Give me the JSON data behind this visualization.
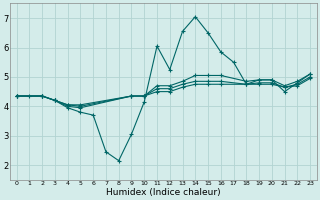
{
  "xlabel": "Humidex (Indice chaleur)",
  "bg_color": "#d4ecea",
  "grid_color": "#b2d4d2",
  "line_color": "#006666",
  "xlim": [
    -0.5,
    23.5
  ],
  "ylim": [
    1.5,
    7.5
  ],
  "xticks": [
    0,
    1,
    2,
    3,
    4,
    5,
    6,
    7,
    8,
    9,
    10,
    11,
    12,
    13,
    14,
    15,
    16,
    17,
    18,
    19,
    20,
    21,
    22,
    23
  ],
  "yticks": [
    2,
    3,
    4,
    5,
    6,
    7
  ],
  "series": [
    {
      "x": [
        0,
        1,
        2,
        3,
        4,
        5,
        6,
        7,
        8,
        9,
        10,
        11,
        12,
        13,
        14,
        15,
        16,
        17,
        18,
        19,
        20,
        21,
        22,
        23
      ],
      "y": [
        4.35,
        4.35,
        4.35,
        4.2,
        3.95,
        3.8,
        3.7,
        2.45,
        2.15,
        3.05,
        4.15,
        6.05,
        5.25,
        6.55,
        7.05,
        6.5,
        5.85,
        5.5,
        4.75,
        4.9,
        4.9,
        4.5,
        4.8,
        5.1
      ]
    },
    {
      "x": [
        0,
        2,
        3,
        4,
        5,
        9,
        10,
        11,
        12,
        13,
        14,
        15,
        16,
        18,
        19,
        20,
        21,
        22,
        23
      ],
      "y": [
        4.35,
        4.35,
        4.2,
        4.0,
        3.95,
        4.35,
        4.35,
        4.7,
        4.7,
        4.85,
        5.05,
        5.05,
        5.05,
        4.85,
        4.9,
        4.9,
        4.7,
        4.85,
        5.1
      ]
    },
    {
      "x": [
        0,
        2,
        3,
        4,
        5,
        9,
        10,
        11,
        12,
        13,
        14,
        15,
        16,
        18,
        19,
        20,
        21,
        22,
        23
      ],
      "y": [
        4.35,
        4.35,
        4.2,
        4.05,
        4.0,
        4.35,
        4.35,
        4.6,
        4.6,
        4.75,
        4.85,
        4.85,
        4.85,
        4.75,
        4.8,
        4.8,
        4.65,
        4.75,
        5.0
      ]
    },
    {
      "x": [
        0,
        2,
        3,
        4,
        5,
        9,
        10,
        11,
        12,
        13,
        14,
        15,
        16,
        18,
        19,
        20,
        21,
        22,
        23
      ],
      "y": [
        4.35,
        4.35,
        4.2,
        4.05,
        4.05,
        4.35,
        4.35,
        4.5,
        4.5,
        4.65,
        4.75,
        4.75,
        4.75,
        4.75,
        4.75,
        4.75,
        4.65,
        4.7,
        4.95
      ]
    }
  ]
}
